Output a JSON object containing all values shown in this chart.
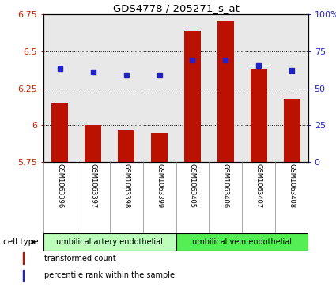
{
  "title": "GDS4778 / 205271_s_at",
  "samples": [
    "GSM1063396",
    "GSM1063397",
    "GSM1063398",
    "GSM1063399",
    "GSM1063405",
    "GSM1063406",
    "GSM1063407",
    "GSM1063408"
  ],
  "bar_values": [
    6.15,
    6.0,
    5.97,
    5.95,
    6.64,
    6.7,
    6.38,
    6.18
  ],
  "dot_values": [
    63,
    61,
    59,
    59,
    69,
    69,
    65,
    62
  ],
  "bar_bottom": 5.75,
  "ylim": [
    5.75,
    6.75
  ],
  "y_ticks": [
    5.75,
    6.0,
    6.25,
    6.5,
    6.75
  ],
  "y_ticklabels": [
    "5.75",
    "6",
    "6.25",
    "6.5",
    "6.75"
  ],
  "y2_ticks": [
    0,
    25,
    50,
    75,
    100
  ],
  "y2_labels": [
    "0",
    "25",
    "50",
    "75",
    "100%"
  ],
  "bar_color": "#bb1100",
  "dot_color": "#2222cc",
  "cell_types": [
    {
      "label": "umbilical artery endothelial",
      "start": 0,
      "end": 4,
      "color": "#bbffbb"
    },
    {
      "label": "umbilical vein endothelial",
      "start": 4,
      "end": 8,
      "color": "#55ee55"
    }
  ],
  "legend_items": [
    {
      "color": "#bb1100",
      "label": "transformed count"
    },
    {
      "color": "#2222cc",
      "label": "percentile rank within the sample"
    }
  ],
  "cell_type_label": "cell type",
  "bg_color": "#ffffff",
  "ylabel_color": "#cc2200",
  "y2label_color": "#2222cc",
  "plot_bg_color": "#e8e8e8",
  "sample_bg_color": "#cccccc"
}
